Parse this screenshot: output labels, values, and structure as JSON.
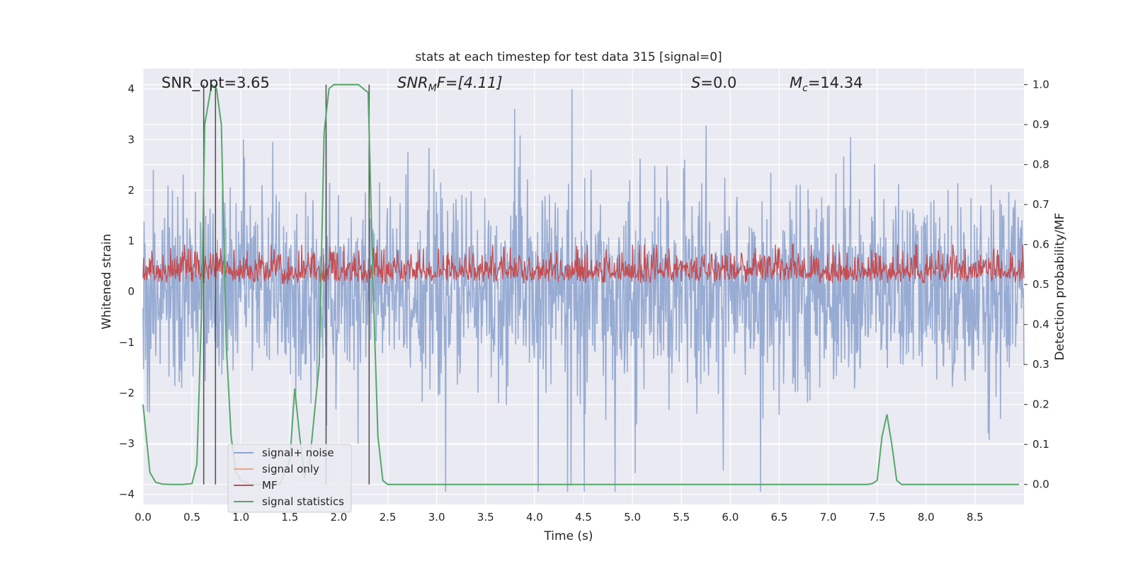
{
  "chart_data": {
    "type": "line",
    "title": "stats at each timestep for test data 315 [signal=0]",
    "xlabel": "Time (s)",
    "ylabel": "Whitened strain",
    "ylabel_right": "Detection probability/MF",
    "xlim": [
      0,
      9.0
    ],
    "ylim": [
      -4.2,
      4.4
    ],
    "ylim_right": [
      -0.05,
      1.04
    ],
    "xticks": [
      "0.0",
      "0.5",
      "1.0",
      "1.5",
      "2.0",
      "2.5",
      "3.0",
      "3.5",
      "4.0",
      "4.5",
      "5.0",
      "5.5",
      "6.0",
      "6.5",
      "7.0",
      "7.5",
      "8.0",
      "8.5"
    ],
    "yticks_left": [
      "−4",
      "−3",
      "−2",
      "−1",
      "0",
      "1",
      "2",
      "3",
      "4"
    ],
    "yticks_right": [
      "0.0",
      "0.1",
      "0.2",
      "0.3",
      "0.4",
      "0.5",
      "0.6",
      "0.7",
      "0.8",
      "0.9",
      "1.0"
    ],
    "grid": true,
    "legend_position": "lower-left",
    "annotations": {
      "snr_opt": "SNR_opt=3.65",
      "snr_mf_base": "SNR",
      "snr_mf_sub": "M",
      "snr_mf_rest": "F=[4.11]",
      "s_italic": "S",
      "s_rest": "=0.0",
      "mc_base": "M",
      "mc_sub": "c",
      "mc_rest": "=14.34"
    },
    "series": [
      {
        "name": "signal+ noise",
        "color": "#8fa5cf",
        "axis": "left",
        "amplitude": 1.5,
        "peak": 4.0
      },
      {
        "name": "signal only",
        "color": "#f0a58a",
        "axis": "left",
        "values": []
      },
      {
        "name": "MF",
        "color": "#c44e52",
        "axis": "right",
        "baseline": 0.5,
        "range": [
          0.5,
          0.6
        ]
      },
      {
        "name": "signal statistics",
        "color": "#55a868",
        "axis": "right",
        "x": [
          0.0,
          0.07,
          0.13,
          0.2,
          0.3,
          0.4,
          0.5,
          0.55,
          0.6,
          0.63,
          0.7,
          0.75,
          0.8,
          0.85,
          0.9,
          0.95,
          1.0,
          1.1,
          1.2,
          1.3,
          1.4,
          1.5,
          1.55,
          1.6,
          1.65,
          1.7,
          1.8,
          1.85,
          1.9,
          1.95,
          2.0,
          2.1,
          2.2,
          2.3,
          2.35,
          2.4,
          2.45,
          2.5,
          2.7,
          3.0,
          4.0,
          5.0,
          6.0,
          7.0,
          7.4,
          7.45,
          7.5,
          7.55,
          7.6,
          7.65,
          7.7,
          7.75,
          8.0,
          8.5,
          8.95
        ],
        "y": [
          0.2,
          0.03,
          0.005,
          0.001,
          0.0,
          0.0,
          0.002,
          0.05,
          0.45,
          0.9,
          1.0,
          0.99,
          0.9,
          0.35,
          0.12,
          0.03,
          0.01,
          0.0,
          0.0,
          0.0,
          0.001,
          0.06,
          0.24,
          0.12,
          0.02,
          0.05,
          0.3,
          0.88,
          0.99,
          1.0,
          1.0,
          1.0,
          1.0,
          0.98,
          0.5,
          0.12,
          0.01,
          0.0,
          0.0,
          0.0,
          0.0,
          0.0,
          0.0,
          0.0,
          0.0,
          0.002,
          0.01,
          0.12,
          0.175,
          0.1,
          0.01,
          0.0,
          0.0,
          0.0,
          0.0
        ]
      }
    ],
    "vertical_lines_x": [
      0.62,
      0.74,
      1.87,
      2.31
    ]
  }
}
